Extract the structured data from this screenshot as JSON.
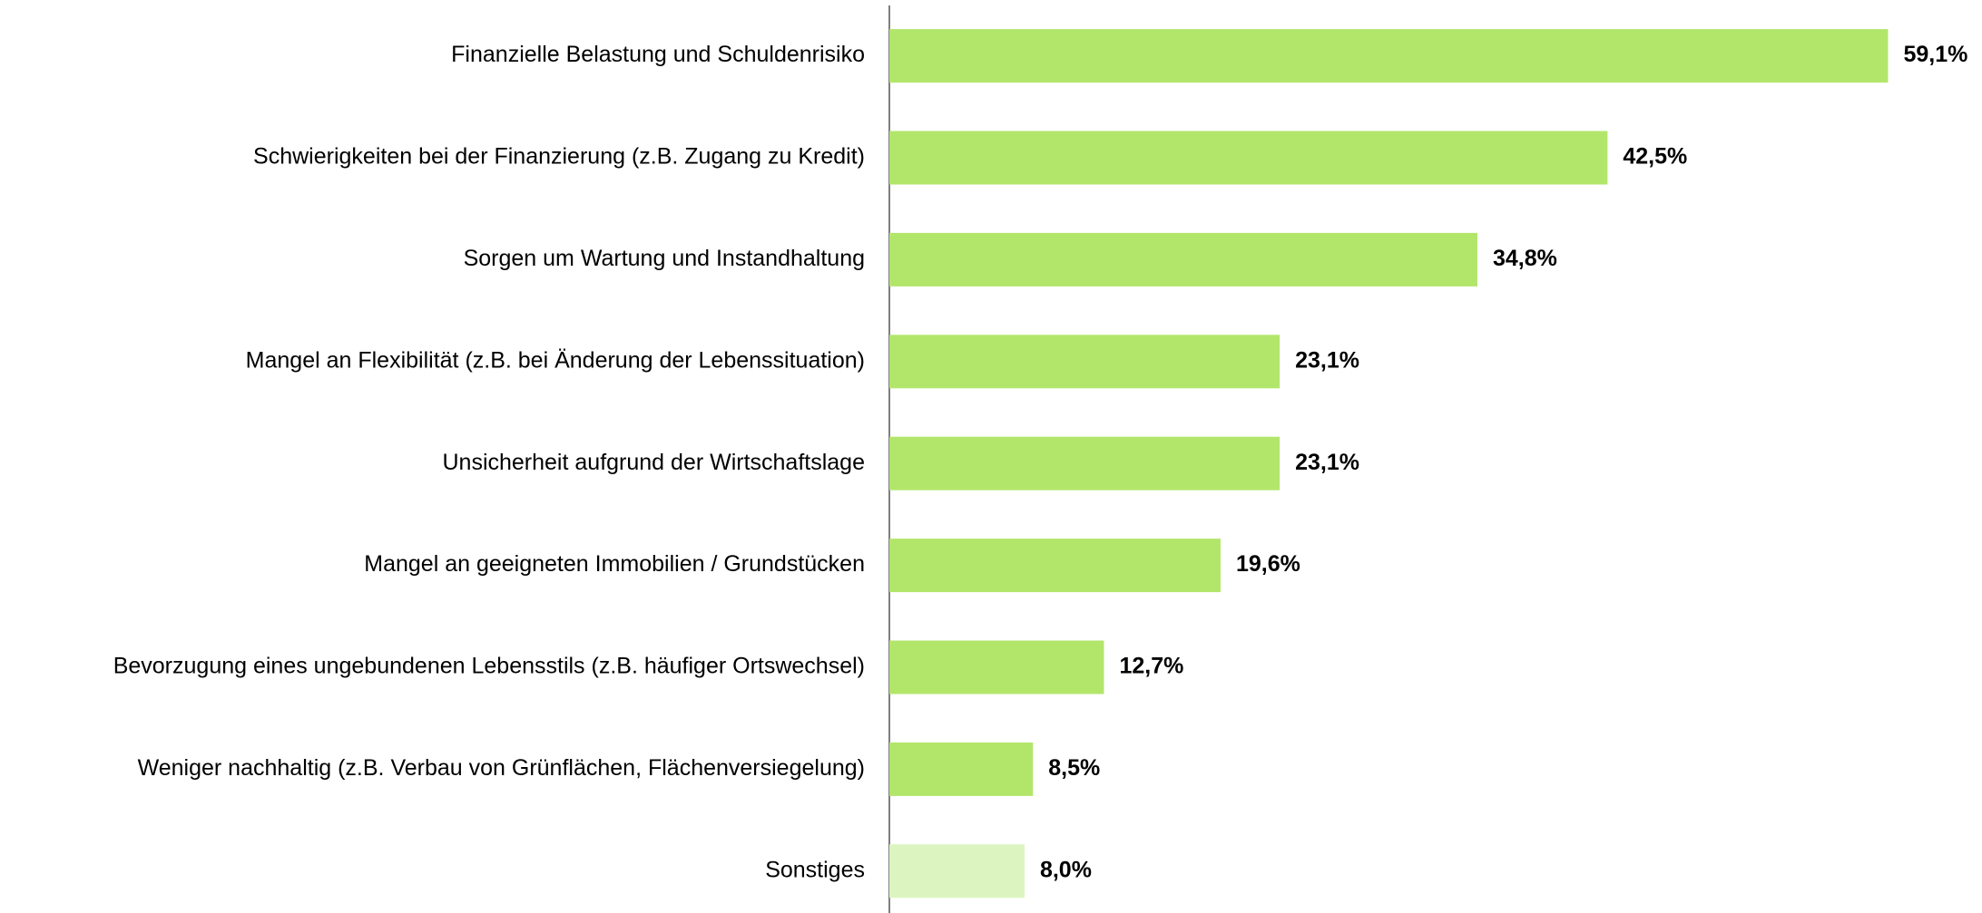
{
  "chart_data": {
    "type": "bar",
    "orientation": "horizontal",
    "categories": [
      "Finanzielle Belastung und Schuldenrisiko",
      "Schwierigkeiten bei der Finanzierung (z.B. Zugang zu Kredit)",
      "Sorgen um Wartung und Instandhaltung",
      "Mangel an Flexibilität (z.B. bei Änderung der Lebenssituation)",
      "Unsicherheit aufgrund der Wirtschaftslage",
      "Mangel an geeigneten Immobilien / Grundstücken",
      "Bevorzugung eines ungebundenen Lebensstils (z.B. häufiger Ortswechsel)",
      "Weniger nachhaltig (z.B. Verbau von Grünflächen, Flächenversiegelung)",
      "Sonstiges"
    ],
    "values": [
      59.1,
      42.5,
      34.8,
      23.1,
      23.1,
      19.6,
      12.7,
      8.5,
      8.0
    ],
    "value_labels": [
      "59,1%",
      "42,5%",
      "34,8%",
      "23,1%",
      "23,1%",
      "19,6%",
      "12,7%",
      "8,5%",
      "8,0%"
    ],
    "colors": [
      "#b2e66b",
      "#b2e66b",
      "#b2e66b",
      "#b2e66b",
      "#b2e66b",
      "#b2e66b",
      "#b2e66b",
      "#b2e66b",
      "#dcf5c0"
    ]
  }
}
